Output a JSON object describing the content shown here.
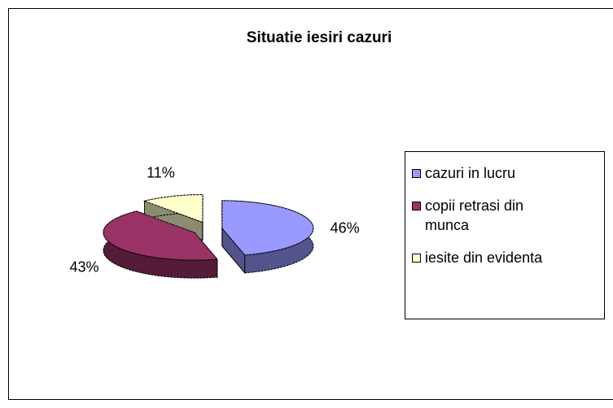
{
  "chart_data": {
    "type": "pie",
    "title": "Situatie iesiri cazuri",
    "categories": [
      "cazuri in lucru",
      "copii retrasi din munca",
      "iesite din evidenta"
    ],
    "values": [
      46,
      43,
      11
    ],
    "value_labels": [
      "46%",
      "43%",
      "11%"
    ],
    "colors": [
      "#9999ff",
      "#993366",
      "#ffffcc"
    ],
    "legend": "right",
    "three_d": true,
    "exploded": true
  }
}
